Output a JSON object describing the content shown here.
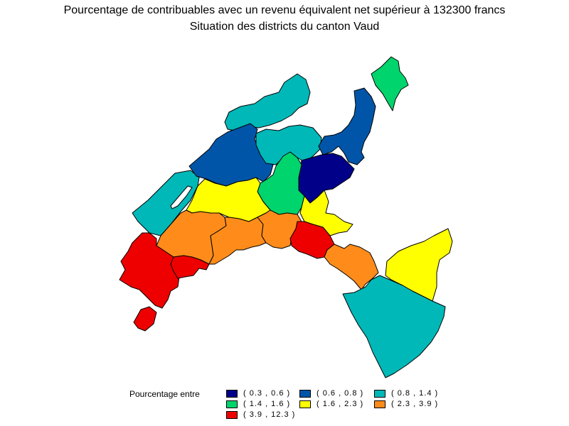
{
  "title": {
    "line1": "Pourcentage de contribuables avec un revenu équivalent net supérieur à 132300 francs",
    "line2": "Situation des districts du canton Vaud"
  },
  "map": {
    "region": "canton Vaud",
    "districts": [
      {
        "name": "jura-nord",
        "class": "(0.8, 1.4)",
        "color": "#00b8b8"
      },
      {
        "name": "vallee-de-joux",
        "class": "(0.8, 1.4)",
        "color": "#00b8b8"
      },
      {
        "name": "yverdon",
        "class": "(0.6, 0.8)",
        "color": "#0055a8"
      },
      {
        "name": "grandson",
        "class": "(0.8, 1.4)",
        "color": "#00b8b8"
      },
      {
        "name": "avenches",
        "class": "(1.4, 1.6)",
        "color": "#00d46c"
      },
      {
        "name": "payerne",
        "class": "(0.6, 0.8)",
        "color": "#0055a8"
      },
      {
        "name": "moudon",
        "class": "(0.3, 0.6)",
        "color": "#000088"
      },
      {
        "name": "echallens",
        "class": "(1.4, 1.6)",
        "color": "#00d46c"
      },
      {
        "name": "cossonay",
        "class": "(1.6, 2.3)",
        "color": "#ffff00"
      },
      {
        "name": "oron",
        "class": "(1.6, 2.3)",
        "color": "#ffff00"
      },
      {
        "name": "aubonne",
        "class": "(2.3, 3.9)",
        "color": "#ff8c1a"
      },
      {
        "name": "morges",
        "class": "(2.3, 3.9)",
        "color": "#ff8c1a"
      },
      {
        "name": "lausanne",
        "class": "(2.3, 3.9)",
        "color": "#ff8c1a"
      },
      {
        "name": "lavaux",
        "class": "(3.9, 12.3)",
        "color": "#ee0000"
      },
      {
        "name": "nyon",
        "class": "(3.9, 12.3)",
        "color": "#ee0000"
      },
      {
        "name": "rolle",
        "class": "(3.9, 12.3)",
        "color": "#ee0000"
      },
      {
        "name": "vevey",
        "class": "(2.3, 3.9)",
        "color": "#ff8c1a"
      },
      {
        "name": "pays-d-enhaut",
        "class": "(1.6, 2.3)",
        "color": "#ffff00"
      },
      {
        "name": "aigle",
        "class": "(0.8, 1.4)",
        "color": "#00b8b8"
      }
    ]
  },
  "legend": {
    "title": "Pourcentage entre",
    "items": [
      {
        "label": "( 0.3 , 0.6 )",
        "color": "#000088"
      },
      {
        "label": "( 0.6 , 0.8 )",
        "color": "#0055a8"
      },
      {
        "label": "( 0.8 , 1.4 )",
        "color": "#00b8b8"
      },
      {
        "label": "( 1.4 , 1.6 )",
        "color": "#00d46c"
      },
      {
        "label": "( 1.6 , 2.3 )",
        "color": "#ffff00"
      },
      {
        "label": "( 2.3 , 3.9 )",
        "color": "#ff8c1a"
      },
      {
        "label": "( 3.9 , 12.3 )",
        "color": "#ee0000"
      }
    ]
  }
}
